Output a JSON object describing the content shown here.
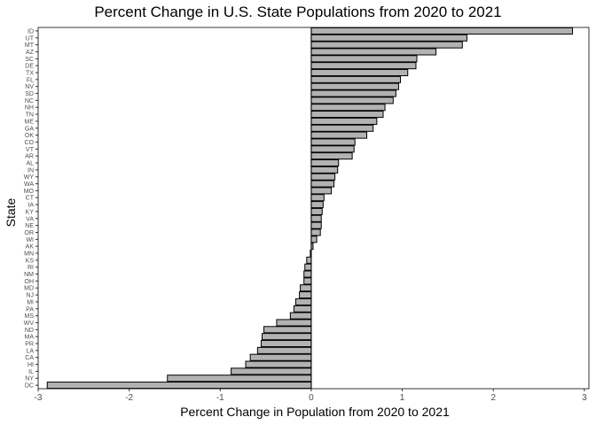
{
  "chart_data": {
    "type": "bar",
    "orientation": "horizontal",
    "title": "Percent Change in U.S. State Populations from 2020 to 2021",
    "xlabel": "Percent Change in Population from 2020 to 2021",
    "ylabel": "State",
    "xlim": [
      -3.0,
      3.05
    ],
    "xticks": [
      -3,
      -2,
      -1,
      0,
      1,
      2,
      3
    ],
    "categories": [
      "ID",
      "UT",
      "MT",
      "AZ",
      "SC",
      "DE",
      "TX",
      "FL",
      "NV",
      "SD",
      "NC",
      "NH",
      "TN",
      "ME",
      "GA",
      "OK",
      "CO",
      "VT",
      "AR",
      "AL",
      "IN",
      "WY",
      "WA",
      "MO",
      "CT",
      "IA",
      "KY",
      "VA",
      "NE",
      "OR",
      "WI",
      "AK",
      "MN",
      "KS",
      "RI",
      "NM",
      "OH",
      "MD",
      "NJ",
      "MI",
      "PA",
      "MS",
      "WV",
      "ND",
      "MA",
      "PR",
      "LA",
      "CA",
      "HI",
      "IL",
      "NY",
      "DC"
    ],
    "values": [
      2.87,
      1.71,
      1.66,
      1.37,
      1.16,
      1.15,
      1.06,
      0.98,
      0.96,
      0.93,
      0.9,
      0.81,
      0.79,
      0.72,
      0.68,
      0.61,
      0.48,
      0.47,
      0.45,
      0.3,
      0.29,
      0.26,
      0.25,
      0.22,
      0.14,
      0.13,
      0.12,
      0.11,
      0.11,
      0.1,
      0.06,
      0.02,
      -0.01,
      -0.05,
      -0.07,
      -0.08,
      -0.08,
      -0.12,
      -0.13,
      -0.17,
      -0.19,
      -0.23,
      -0.38,
      -0.52,
      -0.54,
      -0.55,
      -0.59,
      -0.67,
      -0.72,
      -0.88,
      -1.58,
      -2.9
    ],
    "grid": false,
    "bar_fill": "#b2b2b2",
    "bar_stroke": "#000000",
    "zero_line_color": "#000000",
    "axis_color": "#333333",
    "tick_label_color": "#4d4d4d"
  }
}
